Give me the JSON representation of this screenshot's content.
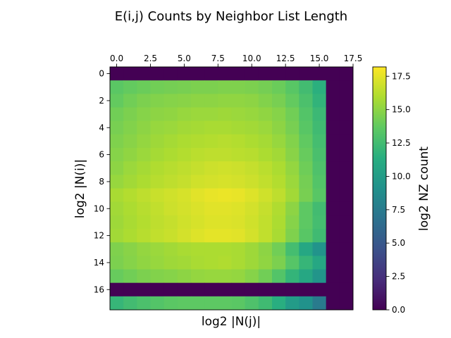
{
  "chart_data": {
    "type": "heatmap",
    "title": "E(i,j) Counts by Neighbor List Length",
    "xlabel": "log2 |N(j)|",
    "ylabel": "log2 |N(i)|",
    "x_axis_position": "top",
    "x_ticks": [
      "0.0",
      "2.5",
      "5.0",
      "7.5",
      "10.0",
      "12.5",
      "15.0",
      "17.5"
    ],
    "y_ticks": [
      "0",
      "2",
      "4",
      "6",
      "8",
      "10",
      "12",
      "14",
      "16"
    ],
    "xlim": [
      -0.5,
      17.5
    ],
    "ylim": [
      17.5,
      -0.5
    ],
    "colormap": "viridis",
    "colorbar": {
      "label": "log2 NZ count",
      "range": [
        0,
        18.2
      ],
      "ticks": [
        "0.0",
        "2.5",
        "5.0",
        "7.5",
        "10.0",
        "12.5",
        "15.0",
        "17.5"
      ]
    },
    "values": [
      [
        0,
        0,
        0,
        0,
        0,
        0,
        0,
        0,
        0,
        0,
        0,
        0,
        0,
        0,
        0,
        0,
        0,
        0
      ],
      [
        13.5,
        13.8,
        14.0,
        14.2,
        14.3,
        14.4,
        14.5,
        14.5,
        14.6,
        14.6,
        14.5,
        14.3,
        14.0,
        13.4,
        12.5,
        11.5,
        0,
        0
      ],
      [
        13.8,
        14.2,
        14.5,
        14.7,
        14.8,
        14.9,
        15.0,
        15.0,
        15.1,
        15.1,
        15.0,
        14.7,
        14.4,
        13.8,
        12.9,
        11.8,
        0,
        0
      ],
      [
        14.2,
        14.5,
        14.8,
        15.0,
        15.1,
        15.3,
        15.4,
        15.4,
        15.5,
        15.4,
        15.3,
        15.1,
        14.8,
        14.2,
        13.2,
        12.2,
        0,
        0
      ],
      [
        14.4,
        14.7,
        15.0,
        15.3,
        15.4,
        15.6,
        15.7,
        15.8,
        15.8,
        15.7,
        15.6,
        15.4,
        15.0,
        14.4,
        13.4,
        12.4,
        0,
        0
      ],
      [
        14.6,
        14.9,
        15.2,
        15.5,
        15.7,
        15.9,
        16.0,
        16.1,
        16.2,
        16.1,
        15.9,
        15.7,
        15.3,
        14.7,
        13.7,
        12.6,
        0,
        0
      ],
      [
        14.8,
        15.1,
        15.4,
        15.7,
        15.9,
        16.1,
        16.3,
        16.4,
        16.4,
        16.3,
        16.2,
        15.9,
        15.6,
        14.9,
        13.9,
        12.8,
        0,
        0
      ],
      [
        15.0,
        15.4,
        15.7,
        16.0,
        16.2,
        16.4,
        16.6,
        16.8,
        16.9,
        16.8,
        16.6,
        16.3,
        15.9,
        15.2,
        14.1,
        13.0,
        0,
        0
      ],
      [
        15.3,
        15.6,
        15.9,
        16.2,
        16.4,
        16.6,
        16.9,
        17.0,
        17.1,
        17.0,
        16.8,
        16.5,
        16.1,
        15.4,
        14.3,
        13.2,
        0,
        0
      ],
      [
        15.8,
        16.1,
        16.4,
        16.7,
        16.9,
        17.1,
        17.4,
        17.6,
        17.7,
        17.6,
        17.3,
        16.9,
        16.4,
        15.6,
        14.4,
        13.4,
        0,
        0
      ],
      [
        15.6,
        15.9,
        16.2,
        16.5,
        16.8,
        17.0,
        17.2,
        17.4,
        17.4,
        17.3,
        17.0,
        16.6,
        16.0,
        15.0,
        13.6,
        12.5,
        0,
        0
      ],
      [
        15.5,
        15.8,
        16.1,
        16.4,
        16.6,
        16.9,
        17.1,
        17.3,
        17.3,
        17.2,
        16.9,
        16.5,
        15.9,
        14.8,
        13.6,
        12.6,
        0,
        0
      ],
      [
        15.6,
        15.9,
        16.2,
        16.5,
        16.7,
        17.0,
        17.3,
        17.5,
        17.5,
        17.4,
        17.0,
        16.5,
        15.8,
        14.6,
        13.4,
        12.4,
        0,
        0
      ],
      [
        14.6,
        14.9,
        15.2,
        15.4,
        15.6,
        15.8,
        15.9,
        15.9,
        15.9,
        15.8,
        15.5,
        15.0,
        14.2,
        12.6,
        10.8,
        9.3,
        0,
        0
      ],
      [
        14.5,
        14.8,
        15.1,
        15.3,
        15.5,
        15.6,
        15.8,
        15.9,
        16.0,
        15.8,
        15.5,
        15.1,
        14.5,
        13.3,
        12.0,
        10.8,
        0,
        0
      ],
      [
        13.9,
        14.2,
        14.5,
        14.7,
        14.8,
        15.0,
        15.2,
        15.3,
        15.3,
        15.2,
        14.8,
        14.2,
        13.2,
        11.9,
        10.8,
        9.4,
        0,
        0
      ],
      [
        0,
        0,
        0,
        0,
        0,
        0,
        0,
        0,
        0,
        0,
        0,
        0,
        0,
        0,
        0,
        0,
        0,
        0
      ],
      [
        12.0,
        12.5,
        12.9,
        13.2,
        13.5,
        13.6,
        13.6,
        13.6,
        13.6,
        13.5,
        13.0,
        12.4,
        11.4,
        9.9,
        9.2,
        7.5,
        0,
        0
      ]
    ]
  }
}
